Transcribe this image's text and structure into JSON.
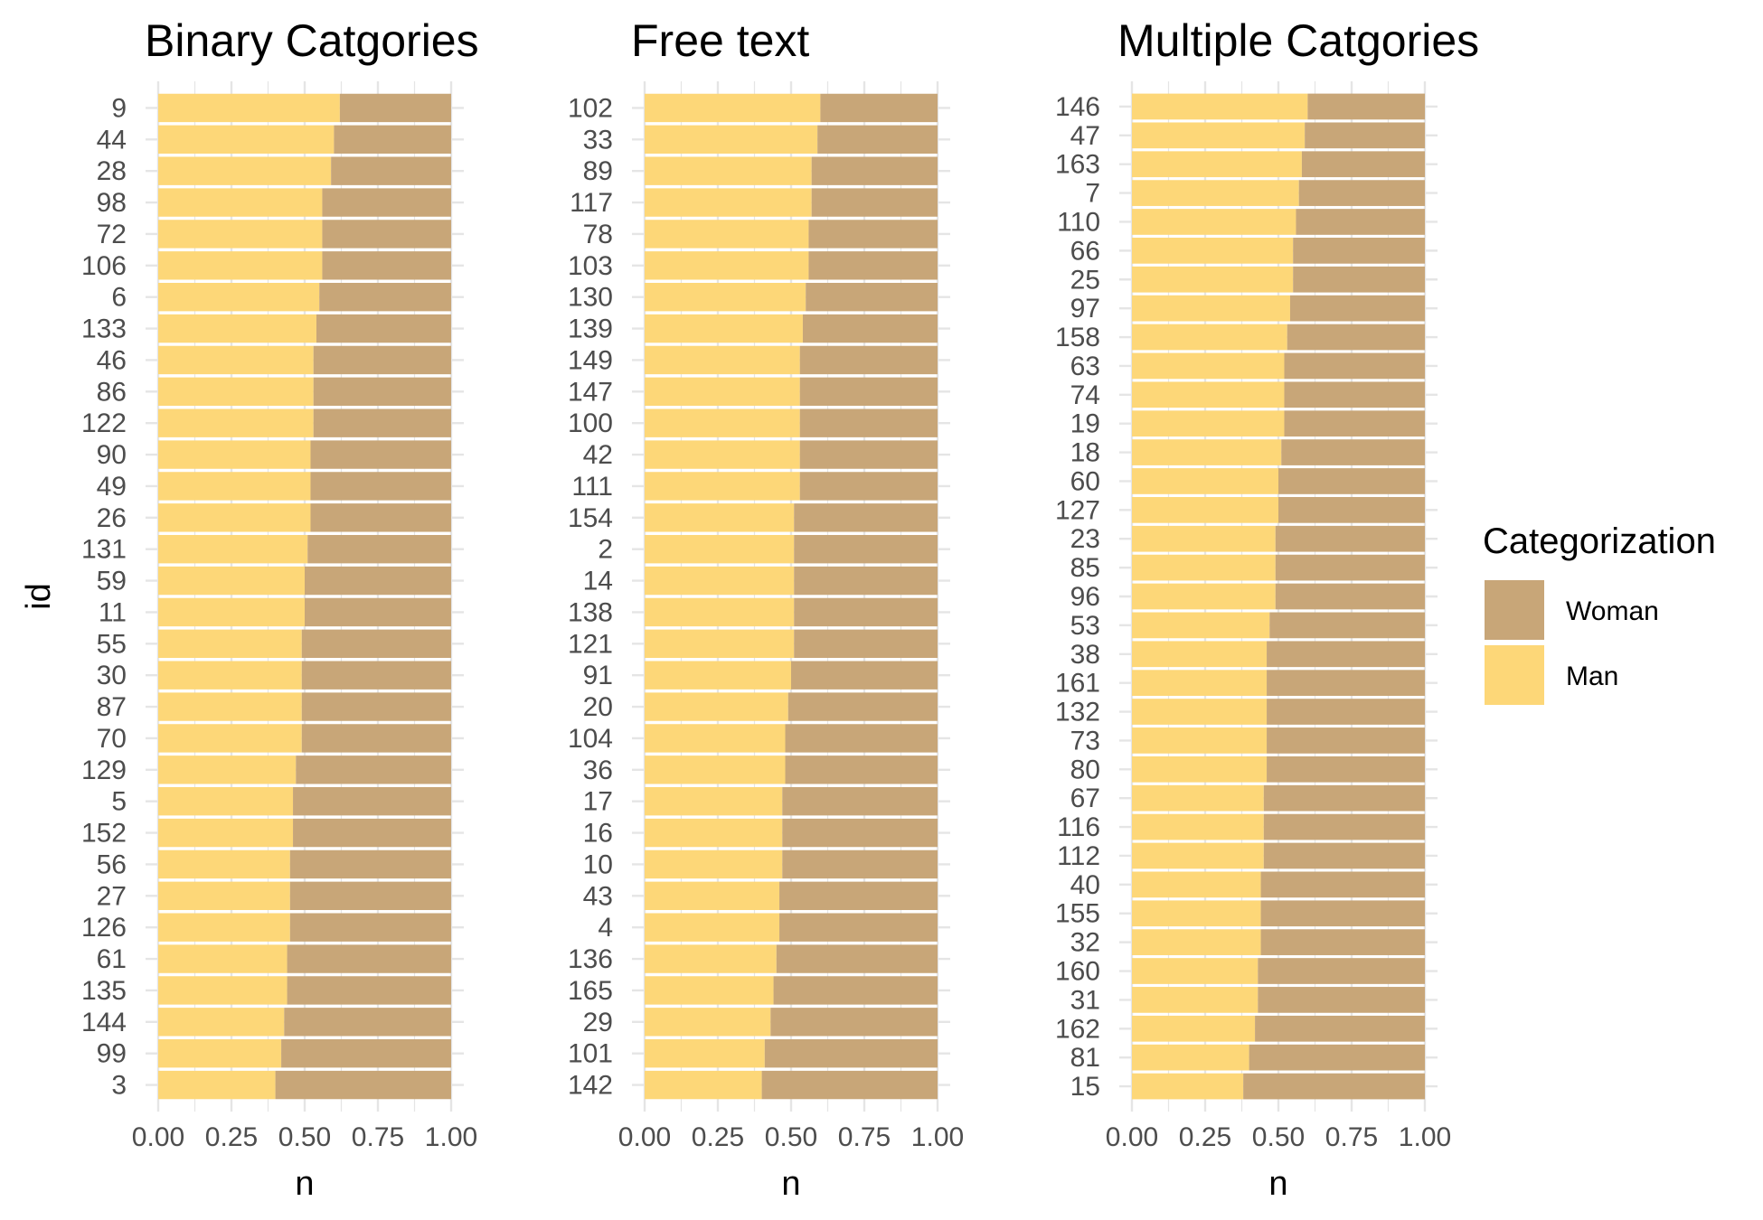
{
  "colors": {
    "woman": "#c8a678",
    "man": "#fdd778",
    "grid": "#e5e5e5"
  },
  "legend": {
    "title": "Categorization",
    "items": [
      {
        "label": "Woman",
        "color": "#c8a678"
      },
      {
        "label": "Man",
        "color": "#fdd778"
      }
    ]
  },
  "chart_data": [
    {
      "type": "bar",
      "orientation": "horizontal",
      "stacked": true,
      "title": "Binary Catgories",
      "xlabel": "n",
      "ylabel": "id",
      "xlim": [
        0,
        1
      ],
      "xticks": [
        "0.00",
        "0.25",
        "0.50",
        "0.75",
        "1.00"
      ],
      "grid": true,
      "categories": [
        "9",
        "44",
        "28",
        "98",
        "72",
        "106",
        "6",
        "133",
        "46",
        "86",
        "122",
        "90",
        "49",
        "26",
        "131",
        "59",
        "11",
        "55",
        "30",
        "87",
        "70",
        "129",
        "5",
        "152",
        "56",
        "27",
        "126",
        "61",
        "135",
        "144",
        "99",
        "3"
      ],
      "series": [
        {
          "name": "Man",
          "values": [
            0.62,
            0.6,
            0.59,
            0.56,
            0.56,
            0.56,
            0.55,
            0.54,
            0.53,
            0.53,
            0.53,
            0.52,
            0.52,
            0.52,
            0.51,
            0.5,
            0.5,
            0.49,
            0.49,
            0.49,
            0.49,
            0.47,
            0.46,
            0.46,
            0.45,
            0.45,
            0.45,
            0.44,
            0.44,
            0.43,
            0.42,
            0.4
          ]
        },
        {
          "name": "Woman",
          "values": [
            0.38,
            0.4,
            0.41,
            0.44,
            0.44,
            0.44,
            0.45,
            0.46,
            0.47,
            0.47,
            0.47,
            0.48,
            0.48,
            0.48,
            0.49,
            0.5,
            0.5,
            0.51,
            0.51,
            0.51,
            0.51,
            0.53,
            0.54,
            0.54,
            0.55,
            0.55,
            0.55,
            0.56,
            0.56,
            0.57,
            0.58,
            0.6
          ]
        }
      ]
    },
    {
      "type": "bar",
      "orientation": "horizontal",
      "stacked": true,
      "title": "Free text",
      "xlabel": "n",
      "ylabel": "",
      "xlim": [
        0,
        1
      ],
      "xticks": [
        "0.00",
        "0.25",
        "0.50",
        "0.75",
        "1.00"
      ],
      "grid": true,
      "categories": [
        "102",
        "33",
        "89",
        "117",
        "78",
        "103",
        "130",
        "139",
        "149",
        "147",
        "100",
        "42",
        "111",
        "154",
        "2",
        "14",
        "138",
        "121",
        "91",
        "20",
        "104",
        "36",
        "17",
        "16",
        "10",
        "43",
        "4",
        "136",
        "165",
        "29",
        "101",
        "142"
      ],
      "series": [
        {
          "name": "Man",
          "values": [
            0.6,
            0.59,
            0.57,
            0.57,
            0.56,
            0.56,
            0.55,
            0.54,
            0.53,
            0.53,
            0.53,
            0.53,
            0.53,
            0.51,
            0.51,
            0.51,
            0.51,
            0.51,
            0.5,
            0.49,
            0.48,
            0.48,
            0.47,
            0.47,
            0.47,
            0.46,
            0.46,
            0.45,
            0.44,
            0.43,
            0.41,
            0.4
          ]
        },
        {
          "name": "Woman",
          "values": [
            0.4,
            0.41,
            0.43,
            0.43,
            0.44,
            0.44,
            0.45,
            0.46,
            0.47,
            0.47,
            0.47,
            0.47,
            0.47,
            0.49,
            0.49,
            0.49,
            0.49,
            0.49,
            0.5,
            0.51,
            0.52,
            0.52,
            0.53,
            0.53,
            0.53,
            0.54,
            0.54,
            0.55,
            0.56,
            0.57,
            0.59,
            0.6
          ]
        }
      ]
    },
    {
      "type": "bar",
      "orientation": "horizontal",
      "stacked": true,
      "title": "Multiple Catgories",
      "xlabel": "n",
      "ylabel": "",
      "xlim": [
        0,
        1
      ],
      "xticks": [
        "0.00",
        "0.25",
        "0.50",
        "0.75",
        "1.00"
      ],
      "grid": true,
      "categories": [
        "146",
        "47",
        "163",
        "7",
        "110",
        "66",
        "25",
        "97",
        "158",
        "63",
        "74",
        "19",
        "18",
        "60",
        "127",
        "23",
        "85",
        "96",
        "53",
        "38",
        "161",
        "132",
        "73",
        "80",
        "67",
        "116",
        "112",
        "40",
        "155",
        "32",
        "160",
        "31",
        "162",
        "81",
        "15"
      ],
      "series": [
        {
          "name": "Man",
          "values": [
            0.6,
            0.59,
            0.58,
            0.57,
            0.56,
            0.55,
            0.55,
            0.54,
            0.53,
            0.52,
            0.52,
            0.52,
            0.51,
            0.5,
            0.5,
            0.49,
            0.49,
            0.49,
            0.47,
            0.46,
            0.46,
            0.46,
            0.46,
            0.46,
            0.45,
            0.45,
            0.45,
            0.44,
            0.44,
            0.44,
            0.43,
            0.43,
            0.42,
            0.4,
            0.38
          ]
        },
        {
          "name": "Woman",
          "values": [
            0.4,
            0.41,
            0.42,
            0.43,
            0.44,
            0.45,
            0.45,
            0.46,
            0.47,
            0.48,
            0.48,
            0.48,
            0.49,
            0.5,
            0.5,
            0.51,
            0.51,
            0.51,
            0.53,
            0.54,
            0.54,
            0.54,
            0.54,
            0.54,
            0.55,
            0.55,
            0.55,
            0.56,
            0.56,
            0.56,
            0.57,
            0.57,
            0.58,
            0.6,
            0.62
          ]
        }
      ]
    }
  ]
}
